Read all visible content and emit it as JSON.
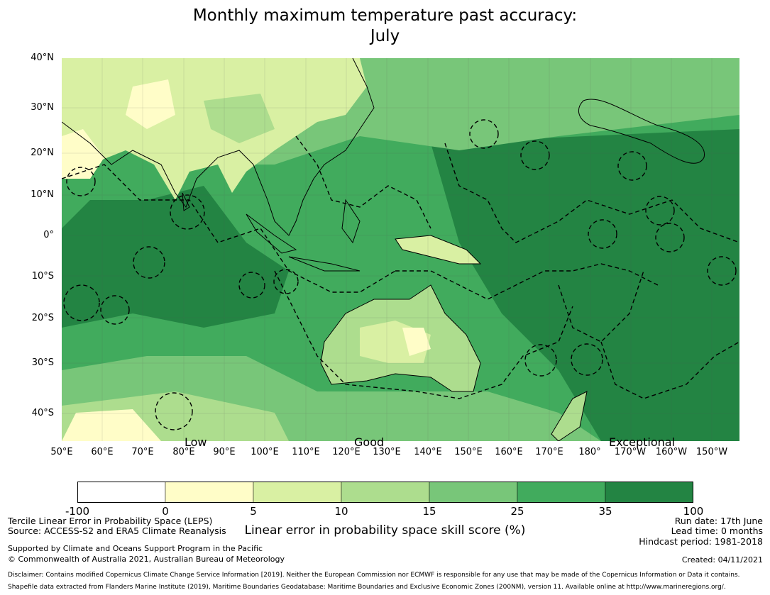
{
  "title": {
    "line1": "Monthly maximum temperature past accuracy:",
    "line2": "July"
  },
  "map": {
    "lat_ticks": [
      "40°N",
      "30°N",
      "20°N",
      "10°N",
      "0°",
      "10°S",
      "20°S",
      "30°S",
      "40°S"
    ],
    "lon_ticks": [
      "50°E",
      "60°E",
      "70°E",
      "80°E",
      "90°E",
      "100°E",
      "110°E",
      "120°E",
      "130°E",
      "140°E",
      "150°E",
      "160°E",
      "170°E",
      "180°",
      "170°W",
      "160°W",
      "150°W"
    ],
    "category_labels": [
      "Low",
      "Good",
      "Exceptional"
    ],
    "colors": {
      "low": "#fffbd0",
      "mid": "#7bc77c",
      "high": "#238443",
      "land_outline": "#000000"
    }
  },
  "colorbar": {
    "ticks": [
      "-100",
      "0",
      "5",
      "10",
      "15",
      "25",
      "35",
      "100"
    ],
    "colors": [
      "#ffffff",
      "#fffdc8",
      "#d9f0a3",
      "#addd8e",
      "#78c679",
      "#41ab5d",
      "#238443"
    ],
    "label": "Linear error in probability space skill score (%)"
  },
  "footer": {
    "left1": "Tercile Linear Error in Probability Space (LEPS)",
    "left2": "Source: ACCESS-S2 and ERA5 Climate Reanalysis",
    "support1": "Supported by Climate and Oceans Support Program in the Pacific",
    "support2": "© Commonwealth of Australia 2021, Australian Bureau of Meteorology",
    "run_date": "Run date: 17th June",
    "lead_time": "Lead time: 0 months",
    "hindcast": "Hindcast period: 1981-2018",
    "created": "Created: 04/11/2021",
    "disclaimer": "Disclaimer: Contains modified Copernicus Climate Change Service Information [2019]. Neither the European Commission nor ECMWF is responsible for any use that may be made of the Copernicus Information or Data it contains.",
    "shapefile": "Shapefile data extracted from Flanders Marine Institute (2019), Maritime Boundaries Geodatabase: Maritime Boundaries and Exclusive Economic Zones (200NM), version 11. Available online at http://www.marineregions.org/."
  }
}
